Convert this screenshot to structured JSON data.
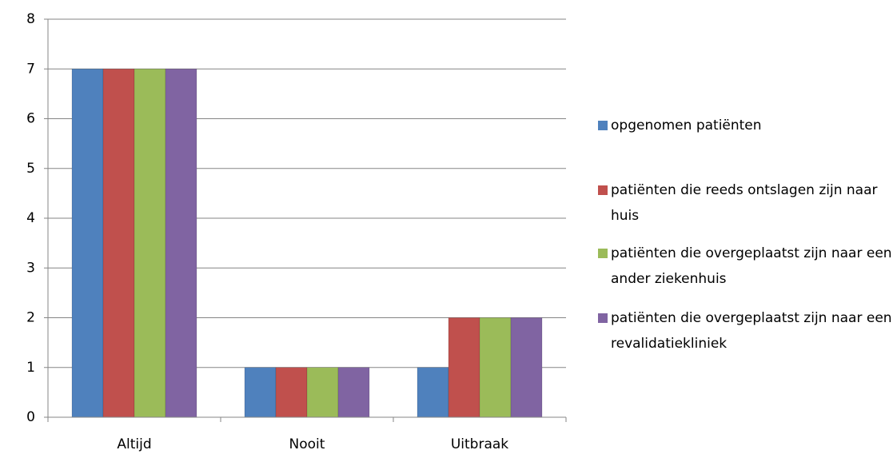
{
  "chart_data": {
    "type": "bar",
    "categories": [
      "Altijd",
      "Nooit",
      "Uitbraak"
    ],
    "series": [
      {
        "name": "opgenomen patiënten",
        "color": "#4f81bd",
        "values": [
          7,
          1,
          1
        ]
      },
      {
        "name": "patiënten die reeds ontslagen zijn naar huis",
        "color": "#c0504d",
        "values": [
          7,
          1,
          2
        ]
      },
      {
        "name": "patiënten die overgeplaatst zijn naar een ander ziekenhuis",
        "color": "#9bbb59",
        "values": [
          7,
          1,
          2
        ]
      },
      {
        "name": "patiënten die overgeplaatst zijn naar een revalidatiekliniek",
        "color": "#8064a2",
        "values": [
          7,
          1,
          2
        ]
      }
    ],
    "ylim": [
      0,
      8
    ],
    "yticks": [
      0,
      1,
      2,
      3,
      4,
      5,
      6,
      7,
      8
    ],
    "grid": true,
    "legend": "right"
  }
}
